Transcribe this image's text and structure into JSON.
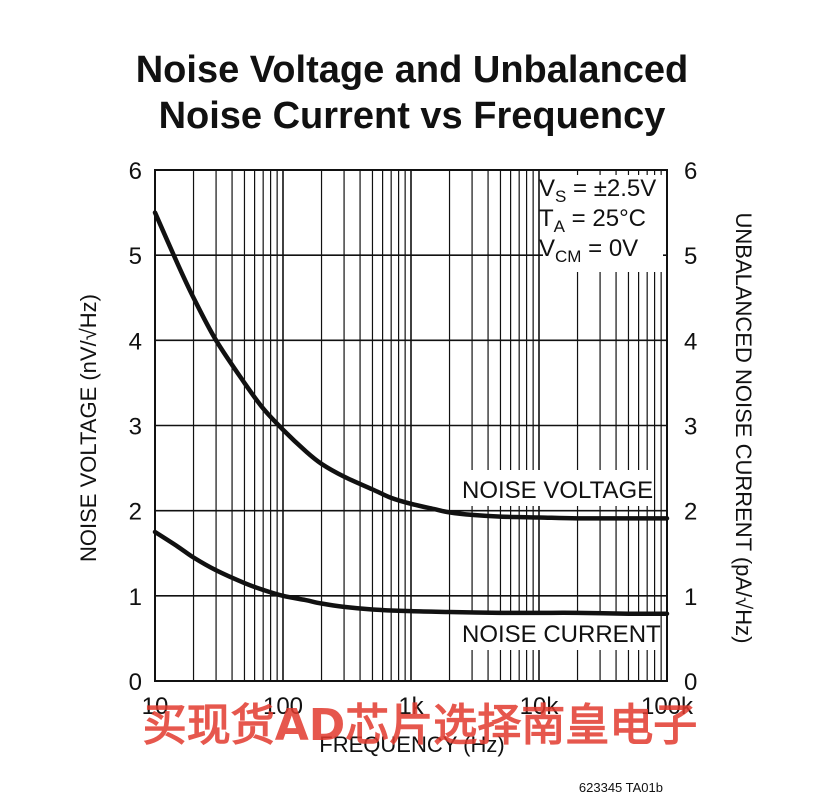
{
  "chart_data": {
    "type": "line",
    "title_line1": "Noise Voltage and Unbalanced",
    "title_line2": "Noise Current vs Frequency",
    "xlabel": "FREQUENCY (Hz)",
    "ylabel_left": "NOISE VOLTAGE (nV/√Hz)",
    "ylabel_right": "UNBALANCED NOISE CURRENT (pA/√Hz)",
    "x_scale": "log",
    "xlim": [
      10,
      100000
    ],
    "ylim": [
      0,
      6
    ],
    "x_tick_labels": [
      "10",
      "100",
      "1k",
      "10k",
      "100k"
    ],
    "x_tick_values": [
      10,
      100,
      1000,
      10000,
      100000
    ],
    "y_ticks": [
      "0",
      "1",
      "2",
      "3",
      "4",
      "5",
      "6"
    ],
    "grid": true,
    "conditions": {
      "vs_main": "V",
      "vs_sub": "S",
      "vs_rest": " = ±2.5V",
      "ta_main": "T",
      "ta_sub": "A",
      "ta_rest": " = 25°C",
      "vcm_main": "V",
      "vcm_sub": "CM",
      "vcm_rest": " = 0V"
    },
    "series": [
      {
        "name": "NOISE VOLTAGE",
        "x": [
          10,
          15,
          20,
          30,
          50,
          70,
          100,
          150,
          200,
          300,
          500,
          700,
          1000,
          1500,
          2000,
          3000,
          5000,
          10000,
          20000,
          50000,
          100000
        ],
        "y": [
          5.5,
          4.9,
          4.5,
          4.0,
          3.5,
          3.2,
          2.95,
          2.7,
          2.55,
          2.4,
          2.25,
          2.15,
          2.08,
          2.02,
          1.98,
          1.95,
          1.93,
          1.92,
          1.91,
          1.91,
          1.91
        ]
      },
      {
        "name": "NOISE CURRENT",
        "x": [
          10,
          15,
          20,
          30,
          50,
          70,
          100,
          150,
          200,
          300,
          500,
          1000,
          2000,
          5000,
          10000,
          20000,
          50000,
          100000
        ],
        "y": [
          1.75,
          1.58,
          1.45,
          1.3,
          1.15,
          1.07,
          1.0,
          0.95,
          0.91,
          0.87,
          0.84,
          0.82,
          0.81,
          0.8,
          0.8,
          0.8,
          0.79,
          0.79
        ]
      }
    ]
  },
  "figure_id": "623345 TA01b",
  "watermark": "买现货AD芯片选择南皇电子"
}
